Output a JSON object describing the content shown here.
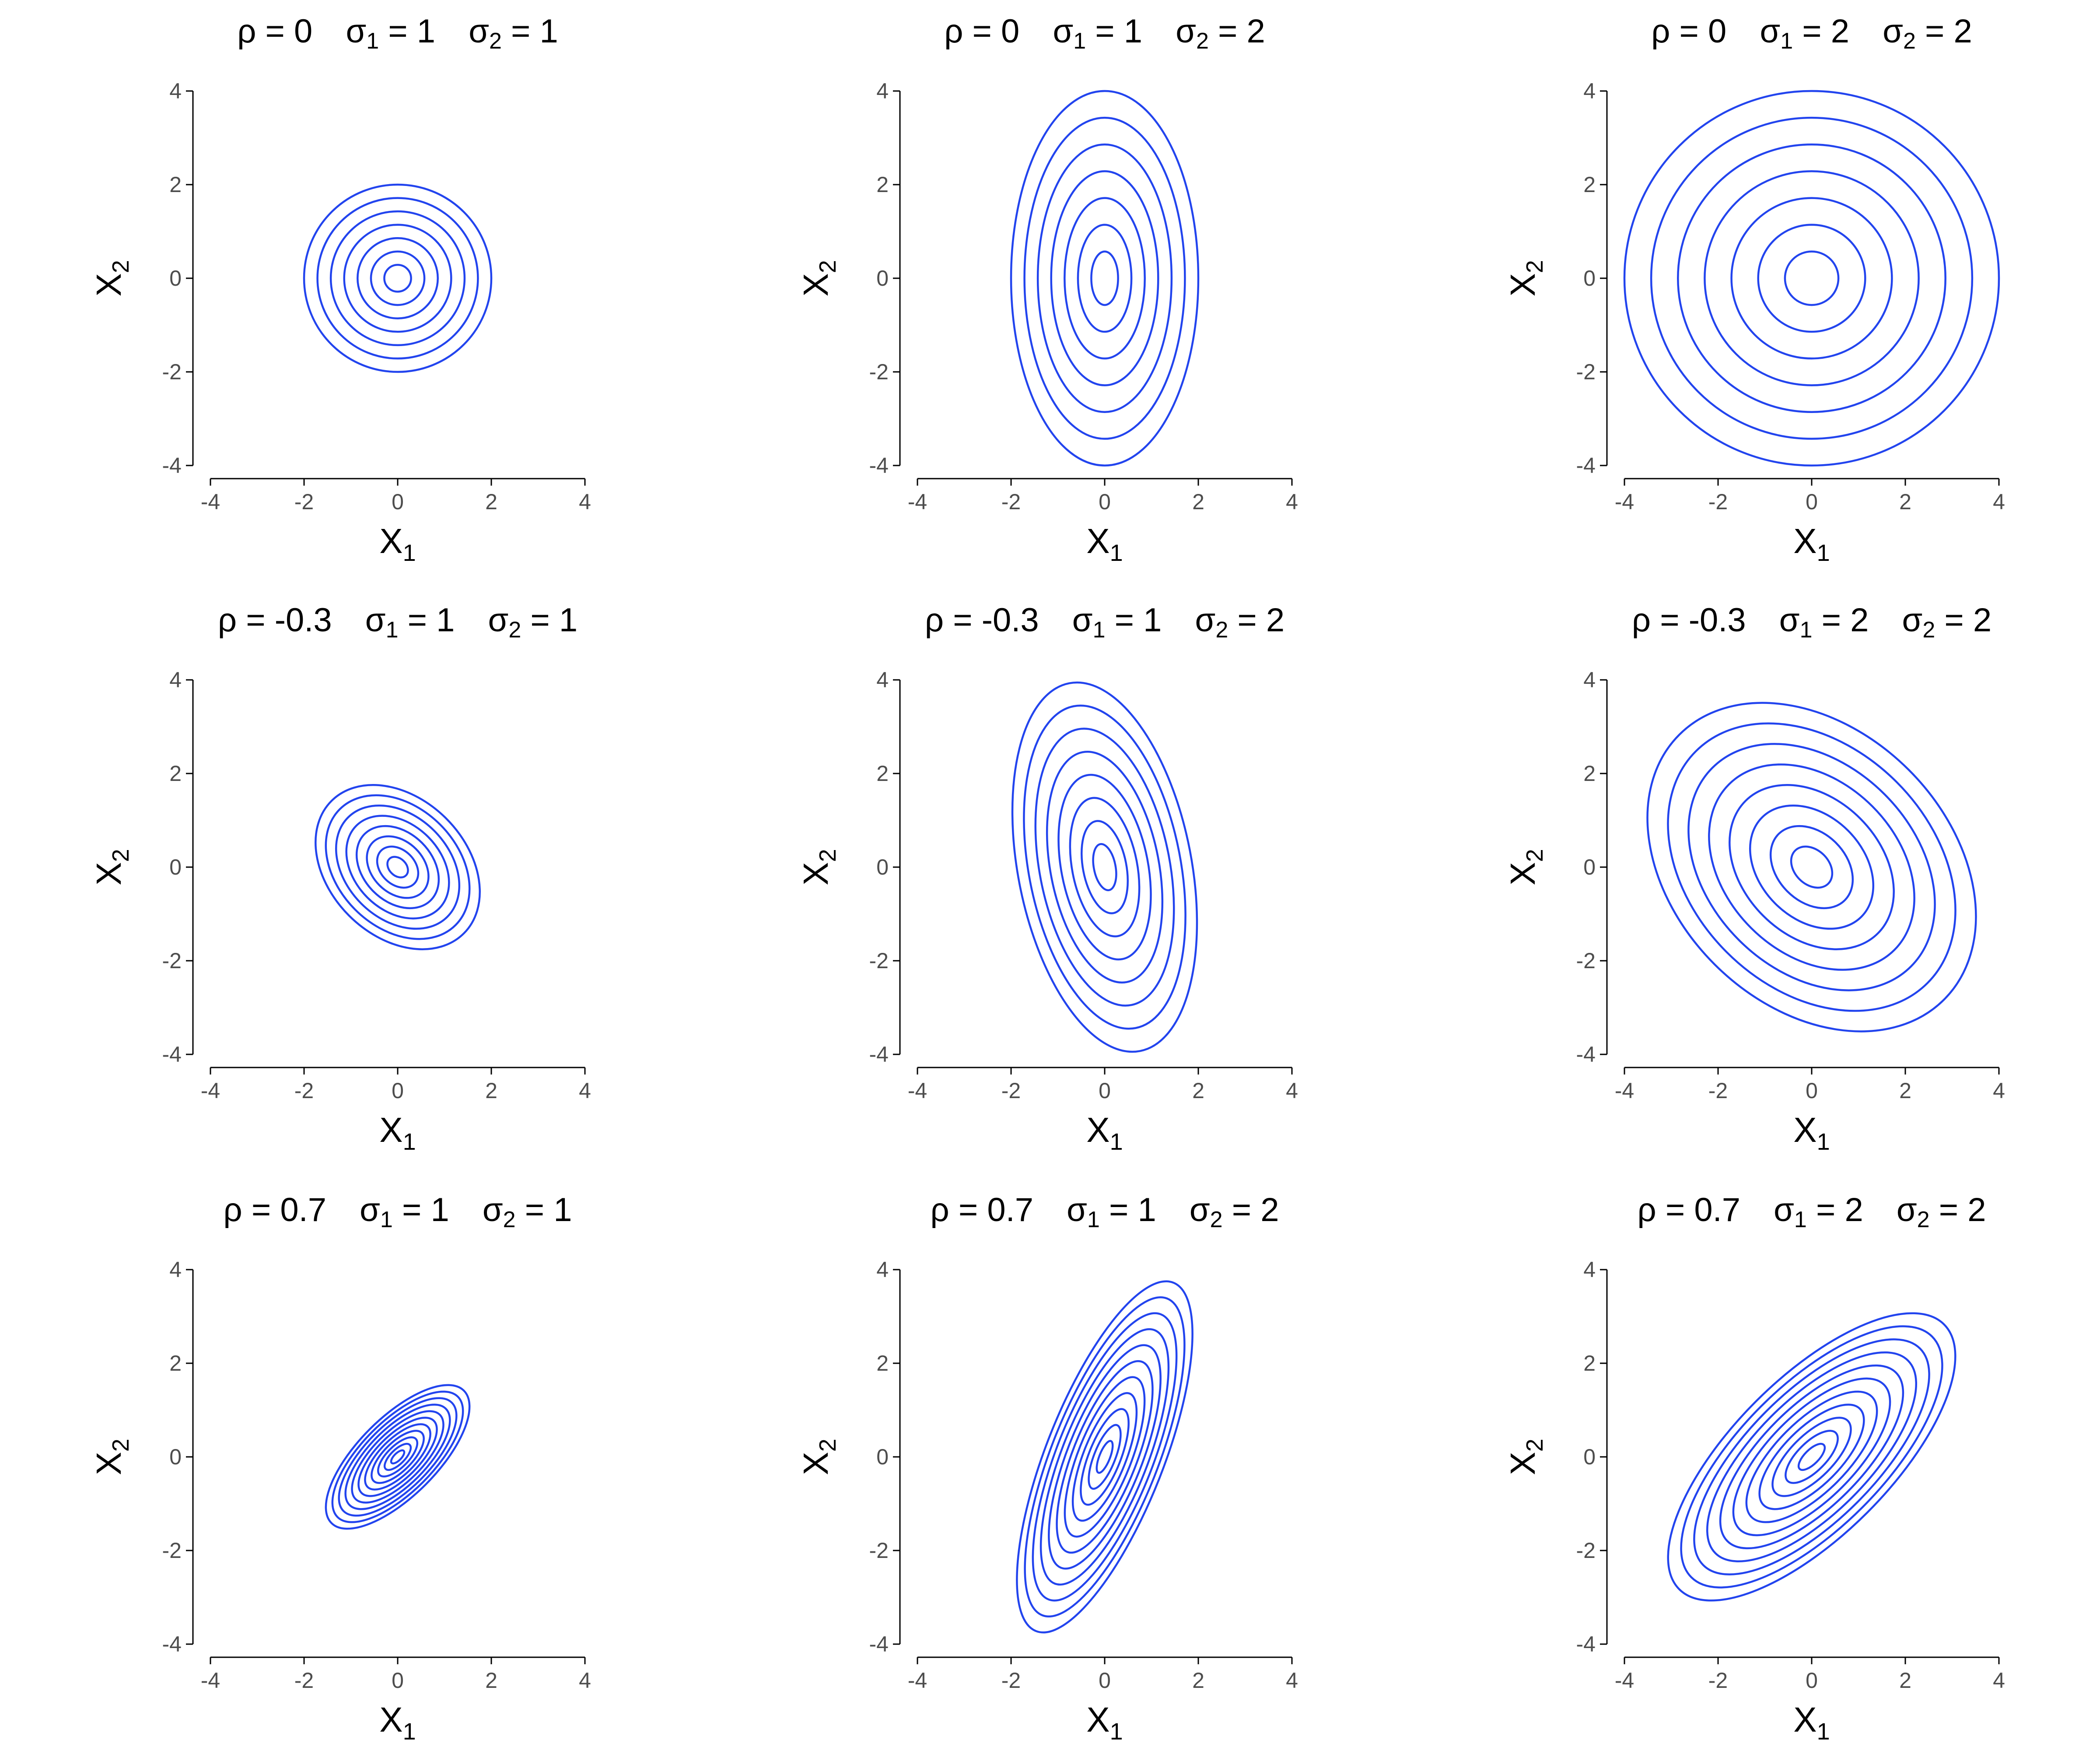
{
  "chart_data": [
    {
      "type": "contour",
      "rho": "0",
      "sigma1": "1",
      "sigma2": "1",
      "rho_value": 0,
      "sigma1_value": 1,
      "sigma2_value": 1,
      "xlabel": "X",
      "xlabel_sub": "1",
      "ylabel": "X",
      "ylabel_sub": "2",
      "xlim": [
        -4,
        4
      ],
      "ylim": [
        -4,
        4
      ],
      "xticks": [
        "-4",
        "-2",
        "0",
        "2",
        "4"
      ],
      "yticks": [
        "4",
        "2",
        "0",
        "-2",
        "-4"
      ],
      "contour_levels": 7
    },
    {
      "type": "contour",
      "rho": "0",
      "sigma1": "1",
      "sigma2": "2",
      "rho_value": 0,
      "sigma1_value": 1,
      "sigma2_value": 2,
      "xlabel": "X",
      "xlabel_sub": "1",
      "ylabel": "X",
      "ylabel_sub": "2",
      "xlim": [
        -4,
        4
      ],
      "ylim": [
        -4,
        4
      ],
      "xticks": [
        "-4",
        "-2",
        "0",
        "2",
        "4"
      ],
      "yticks": [
        "4",
        "2",
        "0",
        "-2",
        "-4"
      ],
      "contour_levels": 7
    },
    {
      "type": "contour",
      "rho": "0",
      "sigma1": "2",
      "sigma2": "2",
      "rho_value": 0,
      "sigma1_value": 2,
      "sigma2_value": 2,
      "xlabel": "X",
      "xlabel_sub": "1",
      "ylabel": "X",
      "ylabel_sub": "2",
      "xlim": [
        -4,
        4
      ],
      "ylim": [
        -4,
        4
      ],
      "xticks": [
        "-4",
        "-2",
        "0",
        "2",
        "4"
      ],
      "yticks": [
        "4",
        "2",
        "0",
        "-2",
        "-4"
      ],
      "contour_levels": 7
    },
    {
      "type": "contour",
      "rho": "-0.3",
      "sigma1": "1",
      "sigma2": "1",
      "rho_value": -0.3,
      "sigma1_value": 1,
      "sigma2_value": 1,
      "xlabel": "X",
      "xlabel_sub": "1",
      "ylabel": "X",
      "ylabel_sub": "2",
      "xlim": [
        -4,
        4
      ],
      "ylim": [
        -4,
        4
      ],
      "xticks": [
        "-4",
        "-2",
        "0",
        "2",
        "4"
      ],
      "yticks": [
        "4",
        "2",
        "0",
        "-2",
        "-4"
      ],
      "contour_levels": 8
    },
    {
      "type": "contour",
      "rho": "-0.3",
      "sigma1": "1",
      "sigma2": "2",
      "rho_value": -0.3,
      "sigma1_value": 1,
      "sigma2_value": 2,
      "xlabel": "X",
      "xlabel_sub": "1",
      "ylabel": "X",
      "ylabel_sub": "2",
      "xlim": [
        -4,
        4
      ],
      "ylim": [
        -4,
        4
      ],
      "xticks": [
        "-4",
        "-2",
        "0",
        "2",
        "4"
      ],
      "yticks": [
        "4",
        "2",
        "0",
        "-2",
        "-4"
      ],
      "contour_levels": 8
    },
    {
      "type": "contour",
      "rho": "-0.3",
      "sigma1": "2",
      "sigma2": "2",
      "rho_value": -0.3,
      "sigma1_value": 2,
      "sigma2_value": 2,
      "xlabel": "X",
      "xlabel_sub": "1",
      "ylabel": "X",
      "ylabel_sub": "2",
      "xlim": [
        -4,
        4
      ],
      "ylim": [
        -4,
        4
      ],
      "xticks": [
        "-4",
        "-2",
        "0",
        "2",
        "4"
      ],
      "yticks": [
        "4",
        "2",
        "0",
        "-2",
        "-4"
      ],
      "contour_levels": 8
    },
    {
      "type": "contour",
      "rho": "0.7",
      "sigma1": "1",
      "sigma2": "1",
      "rho_value": 0.7,
      "sigma1_value": 1,
      "sigma2_value": 1,
      "xlabel": "X",
      "xlabel_sub": "1",
      "ylabel": "X",
      "ylabel_sub": "2",
      "xlim": [
        -4,
        4
      ],
      "ylim": [
        -4,
        4
      ],
      "xticks": [
        "-4",
        "-2",
        "0",
        "2",
        "4"
      ],
      "yticks": [
        "4",
        "2",
        "0",
        "-2",
        "-4"
      ],
      "contour_levels": 11
    },
    {
      "type": "contour",
      "rho": "0.7",
      "sigma1": "1",
      "sigma2": "2",
      "rho_value": 0.7,
      "sigma1_value": 1,
      "sigma2_value": 2,
      "xlabel": "X",
      "xlabel_sub": "1",
      "ylabel": "X",
      "ylabel_sub": "2",
      "xlim": [
        -4,
        4
      ],
      "ylim": [
        -4,
        4
      ],
      "xticks": [
        "-4",
        "-2",
        "0",
        "2",
        "4"
      ],
      "yticks": [
        "4",
        "2",
        "0",
        "-2",
        "-4"
      ],
      "contour_levels": 11
    },
    {
      "type": "contour",
      "rho": "0.7",
      "sigma1": "2",
      "sigma2": "2",
      "rho_value": 0.7,
      "sigma1_value": 2,
      "sigma2_value": 2,
      "xlabel": "X",
      "xlabel_sub": "1",
      "ylabel": "X",
      "ylabel_sub": "2",
      "xlim": [
        -4,
        4
      ],
      "ylim": [
        -4,
        4
      ],
      "xticks": [
        "-4",
        "-2",
        "0",
        "2",
        "4"
      ],
      "yticks": [
        "4",
        "2",
        "0",
        "-2",
        "-4"
      ],
      "contour_levels": 11
    }
  ],
  "colors": {
    "contour": "#2244ee",
    "axis": "#000000",
    "tick_label": "#4d4d4d"
  }
}
